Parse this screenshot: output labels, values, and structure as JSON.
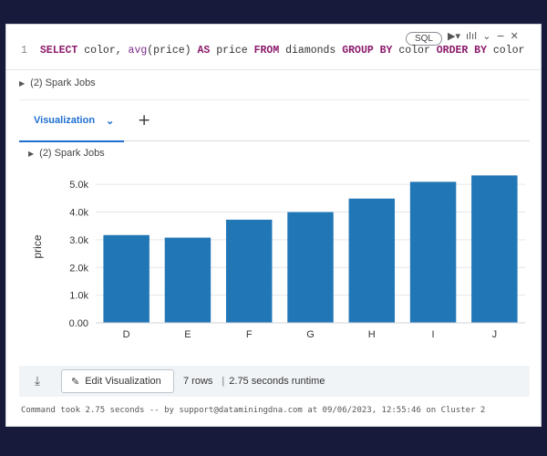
{
  "cell": {
    "line_number": "1",
    "language": "SQL",
    "toolbar": {
      "run_icon": "run-icon",
      "chart_icon": "chart-icon",
      "collapse_icon": "chevron-down-icon",
      "minimize_icon": "minimize-icon",
      "close_icon": "close-icon"
    },
    "code": {
      "t1": "SELECT",
      "t2": " color, ",
      "t3": "avg",
      "t4": "(price) ",
      "t5": "AS",
      "t6": " price ",
      "t7": "FROM",
      "t8": " diamonds ",
      "t9": "GROUP BY",
      "t10": " color ",
      "t11": "ORDER BY",
      "t12": " color"
    }
  },
  "spark_jobs": "(2) Spark Jobs",
  "tabs": {
    "active": "Visualization",
    "add": "+"
  },
  "chart_data": {
    "type": "bar",
    "categories": [
      "D",
      "E",
      "F",
      "G",
      "H",
      "I",
      "J"
    ],
    "values": [
      3170,
      3077,
      3725,
      3999,
      4487,
      5092,
      5324
    ],
    "ylabel": "price",
    "xlabel": "",
    "yticks": [
      "0.00",
      "1.0k",
      "2.0k",
      "3.0k",
      "4.0k",
      "5.0k"
    ],
    "ylim": [
      0,
      5500
    ],
    "bar_color": "#2176b6",
    "grid": true
  },
  "footer": {
    "download_icon": "download-icon",
    "edit_label": "Edit Visualization",
    "rows": "7 rows",
    "separator": "|",
    "runtime": "2.75 seconds runtime"
  },
  "command_info": "Command took 2.75 seconds -- by support@dataminingdna.com at 09/06/2023, 12:55:46 on Cluster 2"
}
